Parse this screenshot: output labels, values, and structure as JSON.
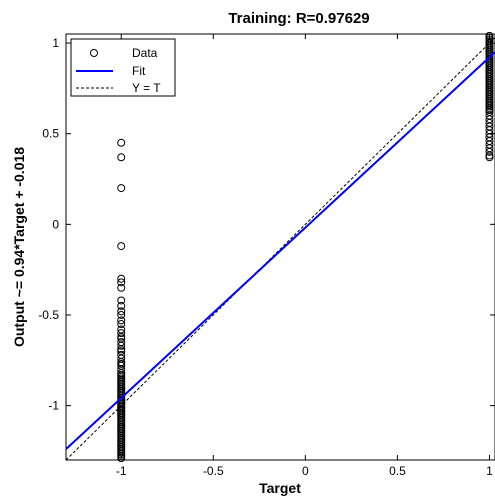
{
  "chart_data": {
    "type": "scatter",
    "title": "Training: R=0.97629",
    "xlabel": "Target",
    "ylabel": "Output ~= 0.94*Target + -0.018",
    "xlim": [
      -1.3,
      1.03
    ],
    "ylim": [
      -1.3,
      1.05
    ],
    "xticks": [
      -1,
      -0.5,
      0,
      0.5,
      1
    ],
    "xtick_labels": [
      "-1",
      "-0.5",
      "0",
      "0.5",
      "1"
    ],
    "yticks": [
      -1,
      -0.5,
      0,
      0.5,
      1
    ],
    "ytick_labels": [
      "-1",
      "-0.5",
      "0",
      "0.5",
      "1"
    ],
    "grid": false,
    "legend_position": "top-left",
    "legend": [
      "Data",
      "Fit",
      "Y = T"
    ],
    "fit": {
      "slope": 0.94,
      "intercept": -0.018
    },
    "series": [
      {
        "name": "Data",
        "x": [
          -1,
          -1,
          -1,
          -1,
          -1,
          -1,
          -1,
          -1,
          -1,
          -1,
          -1,
          -1,
          -1,
          -1,
          -1,
          -1,
          -1,
          -1,
          -1,
          -1,
          -1,
          -1,
          -1,
          -1,
          -1,
          -1,
          -1,
          -1,
          -1,
          -1,
          -1,
          -1,
          -1,
          -1,
          -1,
          -1,
          -1,
          -1,
          -1,
          -1,
          -1,
          -1,
          -1,
          -1,
          -1,
          -1,
          -1,
          -1,
          -1,
          -1,
          -1,
          -1,
          -1,
          -1,
          -1,
          -1,
          -1,
          -1,
          -1,
          -1,
          -1,
          -1,
          -1,
          -1,
          -1,
          -1,
          -1,
          -1,
          -1,
          -1,
          -1,
          -1,
          -1,
          -1,
          -1,
          -1,
          -1,
          -1,
          -1,
          -1,
          1,
          1,
          1,
          1,
          1,
          1,
          1,
          1,
          1,
          1,
          1,
          1,
          1,
          1,
          1,
          1,
          1,
          1,
          1,
          1,
          1,
          1,
          1,
          1,
          1,
          1,
          1,
          1,
          1,
          1,
          1,
          1,
          1,
          1,
          1,
          1,
          1,
          1,
          1,
          1,
          1,
          1,
          1,
          1,
          1,
          1,
          1,
          1,
          1,
          1,
          1,
          1,
          1,
          1,
          1,
          1
        ],
        "y": [
          0.45,
          0.37,
          0.2,
          -0.12,
          -0.3,
          -0.32,
          -0.35,
          -0.42,
          -0.45,
          -0.48,
          -0.5,
          -0.53,
          -0.55,
          -0.58,
          -0.6,
          -0.62,
          -0.65,
          -0.67,
          -0.7,
          -0.72,
          -0.74,
          -0.76,
          -0.78,
          -0.8,
          -0.82,
          -0.84,
          -0.85,
          -0.86,
          -0.88,
          -0.89,
          -0.9,
          -0.91,
          -0.92,
          -0.93,
          -0.94,
          -0.95,
          -0.96,
          -0.97,
          -0.98,
          -0.99,
          -1.0,
          -1.01,
          -1.02,
          -1.03,
          -1.04,
          -1.05,
          -1.06,
          -1.07,
          -1.08,
          -1.09,
          -1.1,
          -1.11,
          -1.12,
          -1.13,
          -1.14,
          -1.15,
          -1.16,
          -1.17,
          -1.18,
          -1.19,
          -1.2,
          -1.21,
          -1.22,
          -1.23,
          -1.24,
          -1.25,
          -1.26,
          -1.27,
          -1.28,
          -1.29,
          -0.97,
          -0.99,
          -1.01,
          -1.03,
          -1.05,
          -0.87,
          -0.83,
          -0.77,
          -0.69,
          -0.63,
          1.04,
          1.03,
          1.02,
          1.01,
          1.0,
          0.99,
          0.98,
          0.97,
          0.96,
          0.95,
          0.94,
          0.93,
          0.92,
          0.91,
          0.9,
          0.89,
          0.88,
          0.87,
          0.86,
          0.85,
          0.84,
          0.83,
          0.82,
          0.81,
          0.8,
          0.79,
          0.78,
          0.77,
          0.76,
          0.75,
          0.74,
          0.73,
          0.72,
          0.71,
          0.7,
          0.69,
          0.68,
          0.67,
          0.66,
          0.65,
          0.64,
          0.63,
          0.62,
          0.6,
          0.58,
          0.56,
          0.54,
          0.52,
          0.5,
          0.48,
          0.46,
          0.44,
          0.42,
          0.4,
          0.38,
          0.37
        ]
      }
    ],
    "colors": {
      "data_marker": "#000000",
      "fit_line": "#0000ff",
      "identity_line": "#000000",
      "axes": "#000000",
      "background": "#ffffff"
    }
  }
}
